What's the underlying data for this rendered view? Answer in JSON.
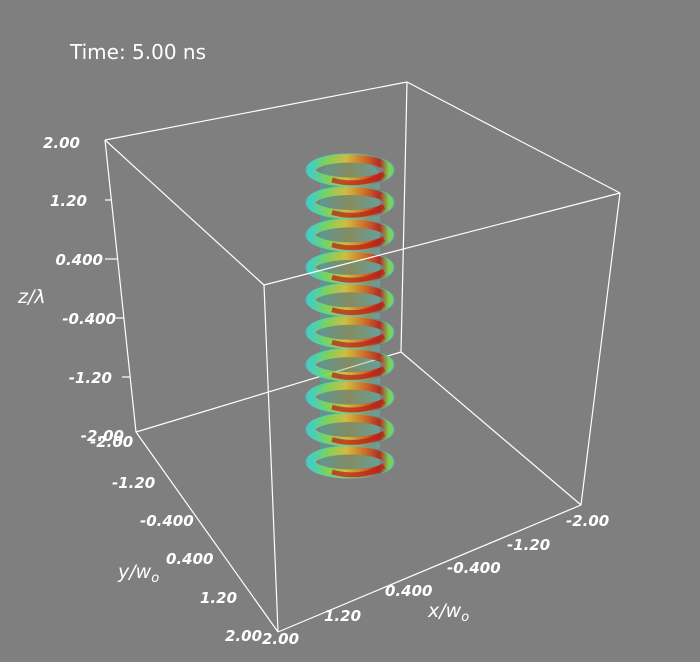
{
  "time_label": "Time: 5.00 ns",
  "colors": {
    "background": "#7f7f7f",
    "box": "#ffffff",
    "helix_colormap": [
      "#3fd6c8",
      "#7ed957",
      "#d9c23a",
      "#d7651f",
      "#b8231a"
    ]
  },
  "axes": {
    "z": {
      "title": "z/λ",
      "ticks": [
        "2.00",
        "1.20",
        "0.400",
        "-0.400",
        "-1.20",
        "-2.00"
      ]
    },
    "y": {
      "title_main": "y/w",
      "title_sub": "o",
      "ticks": [
        "-2.00",
        "-1.20",
        "-0.400",
        "0.400",
        "1.20",
        "2.00"
      ]
    },
    "x": {
      "title_main": "x/w",
      "title_sub": "o",
      "ticks": [
        "2.00",
        "1.20",
        "0.400",
        "-0.400",
        "-1.20",
        "-2.00"
      ]
    }
  },
  "helix": {
    "turns": 10,
    "colorbar_shown": false
  }
}
